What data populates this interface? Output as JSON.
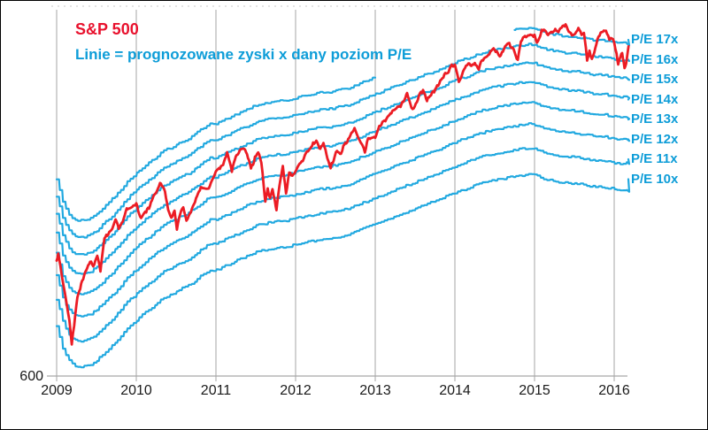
{
  "chart_data": {
    "type": "line",
    "title": "S&P 500",
    "subtitle": "Linie = prognozowane zyski x dany poziom P/E",
    "x_ticks": [
      "2009",
      "2010",
      "2011",
      "2012",
      "2013",
      "2014",
      "2015",
      "2016"
    ],
    "y_tick": "600",
    "x_axis": {
      "min": 2009.0,
      "max": 2016.18,
      "gridlines_at_years": true
    },
    "y_axis": {
      "scale": "log",
      "min": 600,
      "max": 2258,
      "visible_tick": 600
    },
    "legend_position": "right-of-lines",
    "grid": "vertical-only",
    "band_labels": [
      "P/E 17x",
      "P/E 16x",
      "P/E 15x",
      "P/E 14x",
      "P/E 13x",
      "P/E 12x",
      "P/E 11x",
      "P/E 10x"
    ],
    "pe_multiples": [
      17,
      16,
      15,
      14,
      13,
      12,
      11,
      10
    ],
    "pe17_visible_segments": [
      [
        2009.0,
        2013.0
      ],
      [
        2014.75,
        2016.17
      ]
    ],
    "forward_eps": {
      "description": "S&P 500 forward 12m EPS estimate, monthly Jan2009-Mar2016; bands = eps x multiple",
      "start_year": 2009.0,
      "step_years": 0.0833333,
      "values": [
        72,
        66,
        63,
        62,
        62,
        62.5,
        63.5,
        65,
        66.5,
        68,
        70,
        72,
        73.5,
        75,
        76.5,
        78,
        79.5,
        80.5,
        81.5,
        82.5,
        83.5,
        85,
        86.5,
        88,
        88,
        89,
        90,
        91,
        92,
        93,
        94,
        94.5,
        95,
        95.5,
        95.5,
        96,
        96.5,
        97,
        97.5,
        98,
        98.5,
        98.5,
        99,
        99.5,
        100,
        101,
        102,
        103,
        104,
        105,
        106,
        107,
        108,
        109,
        110,
        111,
        112,
        113,
        114,
        115.5,
        116.5,
        117.5,
        118.5,
        119.5,
        120.5,
        121.5,
        122,
        122.5,
        123,
        123.5,
        124,
        124.5,
        124,
        123,
        122,
        121.5,
        121,
        120.5,
        120.5,
        120,
        119.5,
        119,
        119,
        118.5,
        118,
        117.5,
        118
      ]
    },
    "sp500": {
      "name": "S&P 500",
      "points": [
        [
          2009.0,
          915
        ],
        [
          2009.02,
          932
        ],
        [
          2009.06,
          870
        ],
        [
          2009.09,
          826
        ],
        [
          2009.13,
          770
        ],
        [
          2009.16,
          735
        ],
        [
          2009.19,
          676
        ],
        [
          2009.22,
          722
        ],
        [
          2009.26,
          798
        ],
        [
          2009.32,
          843
        ],
        [
          2009.36,
          873
        ],
        [
          2009.42,
          910
        ],
        [
          2009.46,
          893
        ],
        [
          2009.51,
          926
        ],
        [
          2009.55,
          879
        ],
        [
          2009.6,
          987
        ],
        [
          2009.66,
          1010
        ],
        [
          2009.7,
          1021
        ],
        [
          2009.74,
          1057
        ],
        [
          2009.78,
          1025
        ],
        [
          2009.83,
          1046
        ],
        [
          2009.88,
          1096
        ],
        [
          2009.95,
          1110
        ],
        [
          2010.0,
          1115
        ],
        [
          2010.06,
          1060
        ],
        [
          2010.1,
          1078
        ],
        [
          2010.16,
          1104
        ],
        [
          2010.22,
          1160
        ],
        [
          2010.26,
          1174
        ],
        [
          2010.31,
          1210
        ],
        [
          2010.36,
          1166
        ],
        [
          2010.4,
          1089
        ],
        [
          2010.44,
          1065
        ],
        [
          2010.48,
          1090
        ],
        [
          2010.51,
          1023
        ],
        [
          2010.55,
          1078
        ],
        [
          2010.59,
          1102
        ],
        [
          2010.63,
          1049
        ],
        [
          2010.67,
          1075
        ],
        [
          2010.71,
          1110
        ],
        [
          2010.75,
          1141
        ],
        [
          2010.81,
          1183
        ],
        [
          2010.86,
          1178
        ],
        [
          2010.91,
          1181
        ],
        [
          2010.95,
          1224
        ],
        [
          2011.0,
          1258
        ],
        [
          2011.05,
          1276
        ],
        [
          2011.09,
          1286
        ],
        [
          2011.14,
          1343
        ],
        [
          2011.2,
          1260
        ],
        [
          2011.25,
          1326
        ],
        [
          2011.31,
          1360
        ],
        [
          2011.34,
          1364
        ],
        [
          2011.39,
          1345
        ],
        [
          2011.44,
          1268
        ],
        [
          2011.49,
          1321
        ],
        [
          2011.53,
          1354
        ],
        [
          2011.57,
          1292
        ],
        [
          2011.6,
          1200
        ],
        [
          2011.62,
          1124
        ],
        [
          2011.65,
          1180
        ],
        [
          2011.68,
          1140
        ],
        [
          2011.71,
          1175
        ],
        [
          2011.74,
          1131
        ],
        [
          2011.76,
          1099
        ],
        [
          2011.81,
          1225
        ],
        [
          2011.84,
          1285
        ],
        [
          2011.88,
          1160
        ],
        [
          2011.92,
          1247
        ],
        [
          2011.96,
          1244
        ],
        [
          2012.0,
          1258
        ],
        [
          2012.05,
          1290
        ],
        [
          2012.09,
          1312
        ],
        [
          2012.13,
          1342
        ],
        [
          2012.17,
          1366
        ],
        [
          2012.22,
          1390
        ],
        [
          2012.26,
          1408
        ],
        [
          2012.31,
          1359
        ],
        [
          2012.35,
          1398
        ],
        [
          2012.4,
          1320
        ],
        [
          2012.44,
          1278
        ],
        [
          2012.49,
          1325
        ],
        [
          2012.52,
          1362
        ],
        [
          2012.57,
          1340
        ],
        [
          2012.6,
          1379
        ],
        [
          2012.66,
          1407
        ],
        [
          2012.7,
          1441
        ],
        [
          2012.74,
          1466
        ],
        [
          2012.79,
          1412
        ],
        [
          2012.84,
          1380
        ],
        [
          2012.87,
          1353
        ],
        [
          2012.91,
          1416
        ],
        [
          2012.96,
          1420
        ],
        [
          2013.0,
          1426
        ],
        [
          2013.05,
          1480
        ],
        [
          2013.09,
          1498
        ],
        [
          2013.14,
          1515
        ],
        [
          2013.19,
          1552
        ],
        [
          2013.24,
          1569
        ],
        [
          2013.28,
          1582
        ],
        [
          2013.33,
          1598
        ],
        [
          2013.38,
          1650
        ],
        [
          2013.4,
          1669
        ],
        [
          2013.44,
          1608
        ],
        [
          2013.47,
          1573
        ],
        [
          2013.51,
          1606
        ],
        [
          2013.56,
          1660
        ],
        [
          2013.6,
          1686
        ],
        [
          2013.65,
          1627
        ],
        [
          2013.7,
          1660
        ],
        [
          2013.74,
          1682
        ],
        [
          2013.79,
          1720
        ],
        [
          2013.83,
          1757
        ],
        [
          2013.88,
          1790
        ],
        [
          2013.92,
          1806
        ],
        [
          2013.96,
          1842
        ],
        [
          2014.0,
          1848
        ],
        [
          2014.05,
          1742
        ],
        [
          2014.09,
          1783
        ],
        [
          2014.14,
          1838
        ],
        [
          2014.17,
          1859
        ],
        [
          2014.22,
          1850
        ],
        [
          2014.25,
          1872
        ],
        [
          2014.3,
          1815
        ],
        [
          2014.34,
          1884
        ],
        [
          2014.38,
          1900
        ],
        [
          2014.42,
          1924
        ],
        [
          2014.47,
          1950
        ],
        [
          2014.5,
          1960
        ],
        [
          2014.55,
          1909
        ],
        [
          2014.59,
          1931
        ],
        [
          2014.63,
          1988
        ],
        [
          2014.67,
          2003
        ],
        [
          2014.71,
          1972
        ],
        [
          2014.75,
          1946
        ],
        [
          2014.79,
          1875
        ],
        [
          2014.83,
          2018
        ],
        [
          2014.88,
          2045
        ],
        [
          2014.92,
          2068
        ],
        [
          2014.96,
          2059
        ],
        [
          2015.0,
          2059
        ],
        [
          2015.03,
          1995
        ],
        [
          2015.07,
          2050
        ],
        [
          2015.09,
          2105
        ],
        [
          2015.13,
          2090
        ],
        [
          2015.17,
          2068
        ],
        [
          2015.21,
          2086
        ],
        [
          2015.26,
          2100
        ],
        [
          2015.3,
          2086
        ],
        [
          2015.34,
          2118
        ],
        [
          2015.39,
          2131
        ],
        [
          2015.43,
          2080
        ],
        [
          2015.47,
          2063
        ],
        [
          2015.51,
          2077
        ],
        [
          2015.55,
          2104
        ],
        [
          2015.59,
          2068
        ],
        [
          2015.62,
          2080
        ],
        [
          2015.645,
          1972
        ],
        [
          2015.66,
          1868
        ],
        [
          2015.69,
          1940
        ],
        [
          2015.72,
          1882
        ],
        [
          2015.75,
          1924
        ],
        [
          2015.79,
          2023
        ],
        [
          2015.83,
          2079
        ],
        [
          2015.87,
          2090
        ],
        [
          2015.91,
          2080
        ],
        [
          2015.94,
          2020
        ],
        [
          2015.97,
          2044
        ],
        [
          2016.0,
          2013
        ],
        [
          2016.03,
          1922
        ],
        [
          2016.05,
          1859
        ],
        [
          2016.08,
          1903
        ],
        [
          2016.1,
          1940
        ],
        [
          2016.13,
          1829
        ],
        [
          2016.15,
          1865
        ],
        [
          2016.17,
          1948
        ],
        [
          2016.18,
          1978
        ]
      ]
    },
    "colors": {
      "sp500_red": "#ec1c24",
      "title_red": "#e8112d",
      "band_cyan": "#22a9e0",
      "label_cyan": "#0e9dd8",
      "gridline_gray": "#a6a6a6",
      "dotted_top_gray": "#c8c8c8",
      "tick_text": "#1a1a1a",
      "background": "#ffffff",
      "border": "#000000"
    }
  }
}
